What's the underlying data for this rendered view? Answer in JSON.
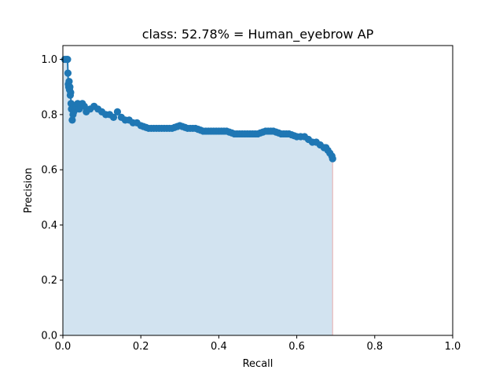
{
  "chart_data": {
    "type": "line",
    "title": "class: 52.78% = Human_eyebrow AP",
    "xlabel": "Recall",
    "ylabel": "Precision",
    "xlim": [
      0,
      1
    ],
    "ylim": [
      0,
      1.05
    ],
    "xticks": [
      "0.0",
      "0.2",
      "0.4",
      "0.6",
      "0.8",
      "1.0"
    ],
    "yticks": [
      "0.0",
      "0.2",
      "0.4",
      "0.6",
      "0.8",
      "1.0"
    ],
    "grid": false,
    "colors": {
      "line": "#1f77b4",
      "marker": "#1f77b4",
      "fill": "#d2e3f0",
      "fill_edge": "#e8b8b8",
      "axes": "#000000"
    },
    "series": [
      {
        "x": [
          0.005,
          0.01,
          0.012,
          0.013,
          0.014,
          0.015,
          0.016,
          0.017,
          0.018,
          0.019,
          0.02,
          0.021,
          0.022,
          0.024,
          0.026,
          0.028,
          0.03,
          0.034,
          0.038,
          0.042,
          0.046,
          0.05,
          0.055,
          0.06,
          0.07,
          0.08,
          0.09,
          0.1,
          0.11,
          0.12,
          0.13,
          0.14,
          0.15,
          0.16,
          0.17,
          0.18,
          0.19,
          0.2,
          0.22,
          0.24,
          0.26,
          0.28,
          0.3,
          0.32,
          0.34,
          0.36,
          0.38,
          0.4,
          0.42,
          0.44,
          0.46,
          0.48,
          0.5,
          0.52,
          0.54,
          0.56,
          0.58,
          0.6,
          0.61,
          0.62,
          0.63,
          0.64,
          0.65,
          0.66,
          0.67,
          0.675,
          0.68,
          0.685,
          0.69,
          0.692
        ],
        "y": [
          1.0,
          1.0,
          1.0,
          0.95,
          0.91,
          0.9,
          0.92,
          0.89,
          0.9,
          0.87,
          0.88,
          0.84,
          0.82,
          0.78,
          0.8,
          0.81,
          0.82,
          0.83,
          0.84,
          0.82,
          0.83,
          0.84,
          0.83,
          0.81,
          0.82,
          0.83,
          0.82,
          0.81,
          0.8,
          0.8,
          0.79,
          0.81,
          0.79,
          0.78,
          0.78,
          0.77,
          0.77,
          0.76,
          0.75,
          0.75,
          0.75,
          0.75,
          0.76,
          0.75,
          0.75,
          0.74,
          0.74,
          0.74,
          0.74,
          0.73,
          0.73,
          0.73,
          0.73,
          0.74,
          0.74,
          0.73,
          0.73,
          0.72,
          0.72,
          0.72,
          0.71,
          0.7,
          0.7,
          0.69,
          0.68,
          0.68,
          0.67,
          0.66,
          0.65,
          0.64
        ]
      }
    ]
  }
}
